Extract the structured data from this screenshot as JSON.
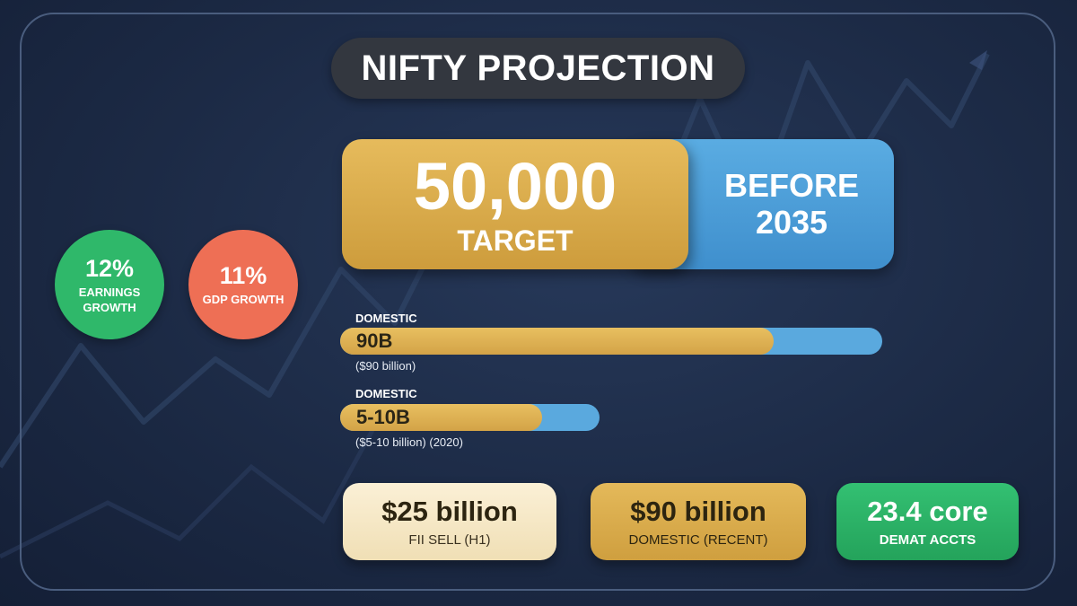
{
  "title": "NIFTY PROJECTION",
  "headline": {
    "target_value": "50,000",
    "target_label": "TARGET",
    "deadline_line1": "BEFORE",
    "deadline_line2": "2035"
  },
  "circles": [
    {
      "value": "12%",
      "label_line1": "EARNINGS",
      "label_line2": "GROWTH",
      "color": "#2fb86a"
    },
    {
      "value": "11%",
      "label_line1": "GDP GROWTH",
      "label_line2": "",
      "color": "#ee6f55"
    }
  ],
  "bars": [
    {
      "category": "DOMESTIC",
      "value": "90B",
      "note": "($90 billion)",
      "fill_fraction": 0.8
    },
    {
      "category": "DOMESTIC",
      "value": "5-10B",
      "note": "($5-10 billion) (2020)",
      "fill_fraction": 0.78
    }
  ],
  "stats": [
    {
      "value": "$25 billion",
      "label": "FII SELL (H1)"
    },
    {
      "value": "$90 billion",
      "label": "DOMESTIC (RECENT)"
    },
    {
      "value": "23.4 core",
      "label": "DEMAT ACCTS"
    }
  ],
  "colors": {
    "gold": "#d9aa4a",
    "blue": "#4a9ad6",
    "green": "#2fb86a",
    "coral": "#ee6f55",
    "background": "#1c2a45"
  }
}
